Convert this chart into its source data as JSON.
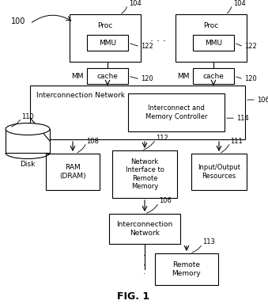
{
  "bg_color": "#ffffff",
  "fig_caption": "FIG. 1",
  "label_100": "100",
  "proc_label": "Proc",
  "mmu_label": "MMU",
  "cache_label": "cache",
  "mm_label": "MM",
  "interconnect_top_label": "Interconnection Network",
  "mem_ctrl_label": "Interconnect and\nMemory Controller",
  "ram_label": "RAM\n(DRAM)",
  "ni_label": "Network\nInterface to\nRemote\nMemory",
  "io_label": "Input/Output\nResources",
  "disk_label": "Disk",
  "interconnect_bot_label": "Interconnection\nNetwork",
  "remote_mem_label": "Remote\nMemory",
  "ref_104": "104",
  "ref_122": "122",
  "ref_120": "120",
  "ref_106": "106",
  "ref_114": "114",
  "ref_108": "108",
  "ref_112": "112",
  "ref_111": "111",
  "ref_110": "110",
  "ref_113": "113"
}
